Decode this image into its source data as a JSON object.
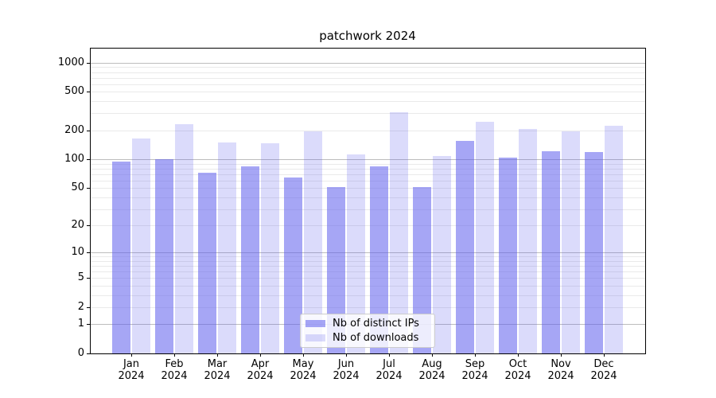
{
  "title": "patchwork 2024",
  "colors": {
    "background": "#ffffff",
    "bar_dark": "rgba(92,92,237,0.55)",
    "bar_light": "rgba(92,92,237,0.22)",
    "grid_major": "#bdbdbd",
    "grid_minor": "#eaeaea",
    "spine": "#000000",
    "text": "#000000",
    "legend_border": "#cccccc"
  },
  "chart_data": {
    "type": "bar",
    "title": "patchwork 2024",
    "xlabel": "",
    "ylabel": "",
    "y_scale": "symlog-like (log10 of 1+value)",
    "ylim": [
      0,
      1430
    ],
    "y_ticks": [
      1000,
      500,
      200,
      100,
      50,
      20,
      10,
      5,
      2,
      1,
      0
    ],
    "grid": "horizontal major and minor gridlines",
    "legend_position": "lower center",
    "categories": [
      "Jan",
      "Feb",
      "Mar",
      "Apr",
      "May",
      "Jun",
      "Jul",
      "Aug",
      "Sep",
      "Oct",
      "Nov",
      "Dec"
    ],
    "x_year": "2024",
    "series": [
      {
        "name": "Nb of distinct IPs",
        "key": "distinct-ips",
        "color": "rgba(92,92,237,0.55)",
        "values": [
          95,
          100,
          72,
          85,
          65,
          51,
          84,
          51,
          155,
          104,
          122,
          120
        ]
      },
      {
        "name": "Nb of downloads",
        "key": "downloads",
        "color": "rgba(92,92,237,0.22)",
        "values": [
          165,
          233,
          150,
          146,
          197,
          113,
          310,
          108,
          247,
          208,
          195,
          221
        ]
      }
    ]
  }
}
